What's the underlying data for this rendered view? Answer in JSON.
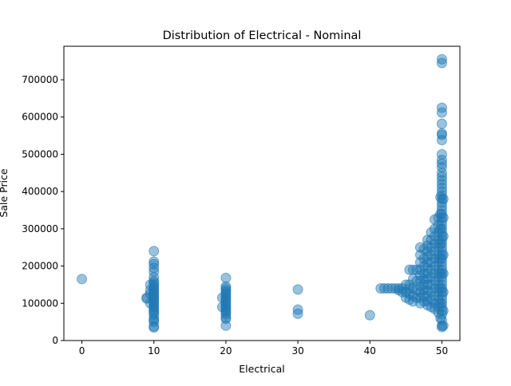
{
  "chart_data": {
    "type": "scatter",
    "title": "Distribution of Electrical - Nominal",
    "xlabel": "Electrical",
    "ylabel": "Sale Price",
    "xlim": [
      -2.5,
      52.5
    ],
    "ylim": [
      0,
      790000
    ],
    "xticks": [
      0,
      10,
      20,
      30,
      40,
      50
    ],
    "yticks": [
      0,
      100000,
      200000,
      300000,
      400000,
      500000,
      600000,
      700000
    ],
    "grid": false,
    "legend": "none",
    "marker_color": "#1f77b4",
    "series": [
      {
        "points": [
          [
            0,
            165000
          ],
          [
            9,
            115000
          ],
          [
            9,
            113000
          ],
          [
            9.5,
            150000
          ],
          [
            9.5,
            135000
          ],
          [
            9.5,
            125000
          ],
          [
            9.5,
            100000
          ],
          [
            10,
            240000
          ],
          [
            10,
            212000
          ],
          [
            10,
            205000
          ],
          [
            10,
            195000
          ],
          [
            10,
            185000
          ],
          [
            10,
            170000
          ],
          [
            10,
            160000
          ],
          [
            10,
            155000
          ],
          [
            10,
            150000
          ],
          [
            10,
            145000
          ],
          [
            10,
            140000
          ],
          [
            10,
            135000
          ],
          [
            10,
            130000
          ],
          [
            10,
            125000
          ],
          [
            10,
            120000
          ],
          [
            10,
            115000
          ],
          [
            10,
            110000
          ],
          [
            10,
            105000
          ],
          [
            10,
            100000
          ],
          [
            10,
            95000
          ],
          [
            10,
            90000
          ],
          [
            10,
            85000
          ],
          [
            10,
            80000
          ],
          [
            10,
            75000
          ],
          [
            10,
            70000
          ],
          [
            10,
            60000
          ],
          [
            10,
            55000
          ],
          [
            10,
            50000
          ],
          [
            10,
            38000
          ],
          [
            10,
            35000
          ],
          [
            19.5,
            115000
          ],
          [
            19.5,
            90000
          ],
          [
            20,
            168000
          ],
          [
            20,
            145000
          ],
          [
            20,
            140000
          ],
          [
            20,
            135000
          ],
          [
            20,
            130000
          ],
          [
            20,
            125000
          ],
          [
            20,
            120000
          ],
          [
            20,
            115000
          ],
          [
            20,
            110000
          ],
          [
            20,
            105000
          ],
          [
            20,
            100000
          ],
          [
            20,
            95000
          ],
          [
            20,
            90000
          ],
          [
            20,
            85000
          ],
          [
            20,
            80000
          ],
          [
            20,
            75000
          ],
          [
            20,
            70000
          ],
          [
            20,
            62000
          ],
          [
            20,
            58000
          ],
          [
            20,
            40000
          ],
          [
            30,
            137000
          ],
          [
            30,
            83000
          ],
          [
            30,
            72000
          ],
          [
            40,
            68000
          ],
          [
            41.5,
            140000
          ],
          [
            42,
            140000
          ],
          [
            42.5,
            140000
          ],
          [
            43,
            140000
          ],
          [
            43.5,
            140000
          ],
          [
            44,
            140000
          ],
          [
            44,
            135000
          ],
          [
            44.5,
            140000
          ],
          [
            44.5,
            130000
          ],
          [
            45,
            150000
          ],
          [
            45,
            130000
          ],
          [
            45,
            115000
          ],
          [
            45.5,
            190000
          ],
          [
            45.5,
            150000
          ],
          [
            45.5,
            140000
          ],
          [
            45.5,
            125000
          ],
          [
            45.5,
            110000
          ],
          [
            46,
            190000
          ],
          [
            46,
            165000
          ],
          [
            46,
            140000
          ],
          [
            46,
            120000
          ],
          [
            46,
            105000
          ],
          [
            46.5,
            190000
          ],
          [
            46.5,
            160000
          ],
          [
            46.5,
            135000
          ],
          [
            46.5,
            115000
          ],
          [
            47,
            250000
          ],
          [
            47,
            230000
          ],
          [
            47,
            210000
          ],
          [
            47,
            190000
          ],
          [
            47,
            175000
          ],
          [
            47,
            160000
          ],
          [
            47,
            145000
          ],
          [
            47,
            130000
          ],
          [
            47,
            115000
          ],
          [
            47,
            100000
          ],
          [
            47.5,
            245000
          ],
          [
            47.5,
            220000
          ],
          [
            47.5,
            200000
          ],
          [
            47.5,
            180000
          ],
          [
            47.5,
            165000
          ],
          [
            47.5,
            150000
          ],
          [
            47.5,
            135000
          ],
          [
            47.5,
            120000
          ],
          [
            47.5,
            105000
          ],
          [
            48,
            270000
          ],
          [
            48,
            255000
          ],
          [
            48,
            240000
          ],
          [
            48,
            225000
          ],
          [
            48,
            210000
          ],
          [
            48,
            195000
          ],
          [
            48,
            180000
          ],
          [
            48,
            165000
          ],
          [
            48,
            150000
          ],
          [
            48,
            135000
          ],
          [
            48,
            120000
          ],
          [
            48,
            105000
          ],
          [
            48,
            95000
          ],
          [
            48.5,
            290000
          ],
          [
            48.5,
            270000
          ],
          [
            48.5,
            250000
          ],
          [
            48.5,
            230000
          ],
          [
            48.5,
            210000
          ],
          [
            48.5,
            190000
          ],
          [
            48.5,
            170000
          ],
          [
            48.5,
            150000
          ],
          [
            48.5,
            130000
          ],
          [
            48.5,
            110000
          ],
          [
            48.5,
            90000
          ],
          [
            49,
            325000
          ],
          [
            49,
            300000
          ],
          [
            49,
            280000
          ],
          [
            49,
            260000
          ],
          [
            49,
            240000
          ],
          [
            49,
            220000
          ],
          [
            49,
            200000
          ],
          [
            49,
            180000
          ],
          [
            49,
            160000
          ],
          [
            49,
            140000
          ],
          [
            49,
            120000
          ],
          [
            49,
            100000
          ],
          [
            49,
            85000
          ],
          [
            49.5,
            330000
          ],
          [
            49.5,
            310000
          ],
          [
            49.5,
            290000
          ],
          [
            49.5,
            270000
          ],
          [
            49.5,
            250000
          ],
          [
            49.5,
            230000
          ],
          [
            49.5,
            210000
          ],
          [
            49.5,
            190000
          ],
          [
            49.5,
            170000
          ],
          [
            49.5,
            150000
          ],
          [
            49.5,
            130000
          ],
          [
            49.5,
            110000
          ],
          [
            49.5,
            90000
          ],
          [
            49.5,
            75000
          ],
          [
            50,
            755000
          ],
          [
            50,
            745000
          ],
          [
            50,
            625000
          ],
          [
            50,
            612000
          ],
          [
            50,
            582000
          ],
          [
            50,
            556000
          ],
          [
            50,
            552000
          ],
          [
            50,
            538000
          ],
          [
            50,
            500000
          ],
          [
            50,
            485000
          ],
          [
            50,
            475000
          ],
          [
            50,
            465000
          ],
          [
            50,
            450000
          ],
          [
            50,
            440000
          ],
          [
            50,
            430000
          ],
          [
            50,
            420000
          ],
          [
            50,
            410000
          ],
          [
            50,
            400000
          ],
          [
            50,
            390000
          ],
          [
            50,
            380000
          ],
          [
            50,
            370000
          ],
          [
            50,
            360000
          ],
          [
            50,
            350000
          ],
          [
            50,
            340000
          ],
          [
            50,
            330000
          ],
          [
            50,
            320000
          ],
          [
            50,
            310000
          ],
          [
            50,
            300000
          ],
          [
            50,
            290000
          ],
          [
            50,
            280000
          ],
          [
            50,
            270000
          ],
          [
            50,
            260000
          ],
          [
            50,
            250000
          ],
          [
            50,
            240000
          ],
          [
            50,
            230000
          ],
          [
            50,
            220000
          ],
          [
            50,
            210000
          ],
          [
            50,
            200000
          ],
          [
            50,
            190000
          ],
          [
            50,
            180000
          ],
          [
            50,
            170000
          ],
          [
            50,
            160000
          ],
          [
            50,
            150000
          ],
          [
            50,
            140000
          ],
          [
            50,
            130000
          ],
          [
            50,
            120000
          ],
          [
            50,
            110000
          ],
          [
            50,
            100000
          ],
          [
            50,
            90000
          ],
          [
            50,
            80000
          ],
          [
            50,
            70000
          ],
          [
            50,
            55000
          ],
          [
            50,
            40000
          ],
          [
            50,
            36000
          ],
          [
            49.8,
            385000
          ],
          [
            49.8,
            340000
          ],
          [
            49.8,
            300000
          ],
          [
            49.8,
            260000
          ],
          [
            49.8,
            220000
          ],
          [
            49.8,
            180000
          ],
          [
            49.8,
            140000
          ],
          [
            49.8,
            100000
          ],
          [
            49.8,
            60000
          ],
          [
            50.2,
            380000
          ],
          [
            50.2,
            330000
          ],
          [
            50.2,
            280000
          ],
          [
            50.2,
            230000
          ],
          [
            50.2,
            180000
          ],
          [
            50.2,
            130000
          ],
          [
            50.2,
            80000
          ],
          [
            50.2,
            40000
          ]
        ]
      }
    ]
  }
}
